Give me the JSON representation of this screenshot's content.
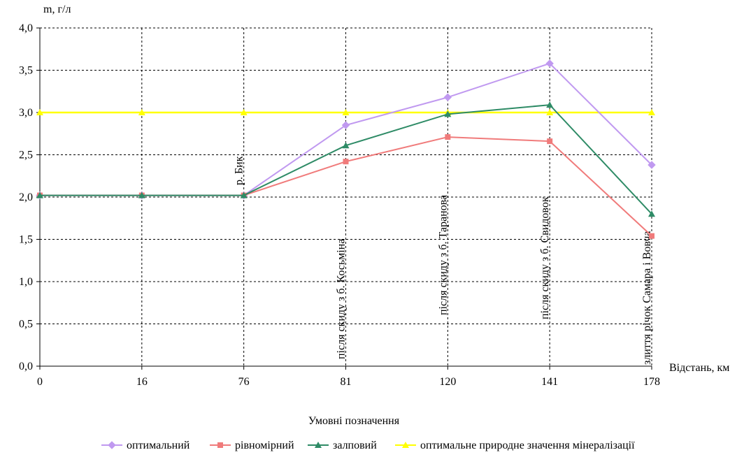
{
  "chart_data": {
    "type": "line",
    "ylabel": "m, г/л",
    "xlabel": "Відстань, км",
    "legend_title": "Умовні позначення",
    "categories": [
      "0",
      "16",
      "76",
      "81",
      "120",
      "141",
      "178"
    ],
    "ylim": [
      0,
      4
    ],
    "yticks": [
      "0,0",
      "0,5",
      "1,0",
      "1,5",
      "2,0",
      "2,5",
      "3,0",
      "3,5",
      "4,0"
    ],
    "grid": true,
    "legend_position": "bottom",
    "series": [
      {
        "name": "оптимальний",
        "color": "#c099f0",
        "marker": "diamond",
        "values": [
          2.02,
          2.02,
          2.02,
          2.85,
          3.18,
          3.58,
          2.38
        ]
      },
      {
        "name": "рівномірний",
        "color": "#f07b7b",
        "marker": "square",
        "values": [
          2.02,
          2.02,
          2.02,
          2.42,
          2.71,
          2.66,
          1.54
        ]
      },
      {
        "name": "залповий",
        "color": "#2e8b66",
        "marker": "triangle",
        "values": [
          2.02,
          2.02,
          2.02,
          2.61,
          2.98,
          3.09,
          1.8
        ]
      },
      {
        "name": "оптимальне природне значення мінералізації",
        "color": "#ffff00",
        "marker": "triangle",
        "values": [
          3.0,
          3.0,
          3.0,
          3.0,
          3.0,
          3.0,
          3.0
        ]
      }
    ],
    "annotations": [
      {
        "category_index": 2,
        "text": "р. Бик"
      },
      {
        "category_index": 3,
        "text": "після скиду з б. Косьміна"
      },
      {
        "category_index": 4,
        "text": "після скиду з б. Таранова"
      },
      {
        "category_index": 5,
        "text": "після скиду з б. Свидовок"
      },
      {
        "category_index": 6,
        "text": "злиття річок Самара і Вовча"
      }
    ]
  }
}
